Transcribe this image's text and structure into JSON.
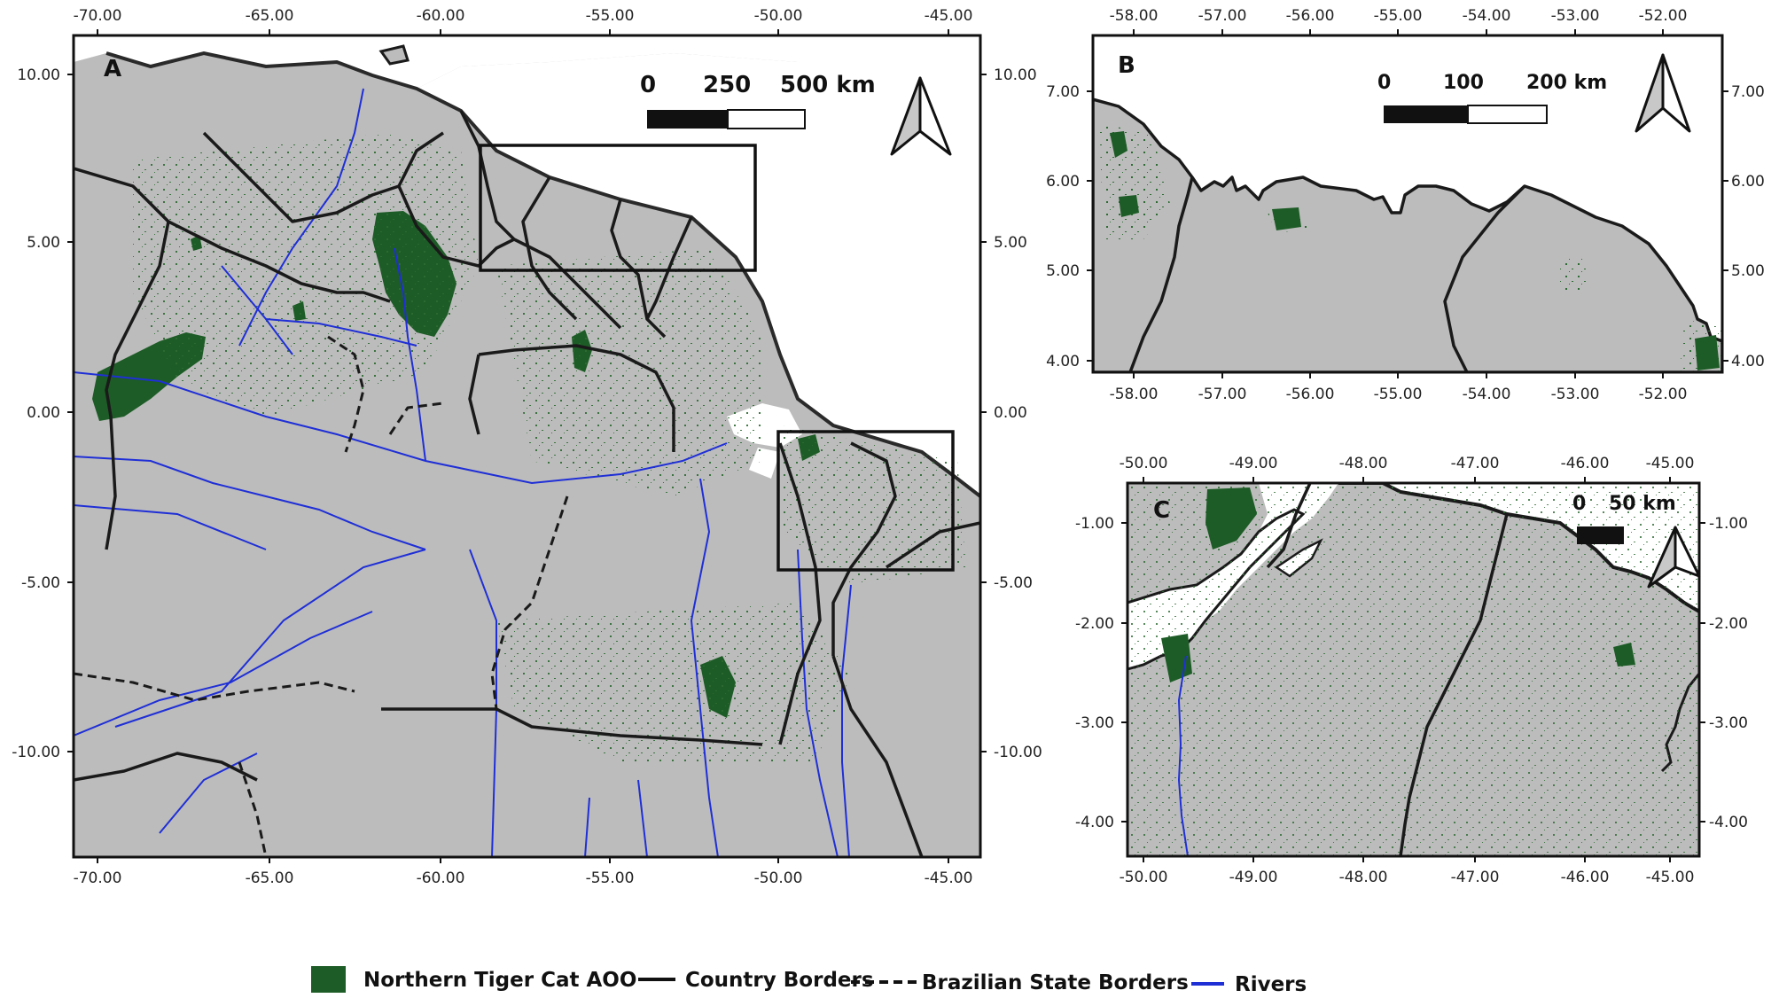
{
  "colors": {
    "land": "#bcbcbc",
    "ocean": "#ffffff",
    "aoo": "#1d5c26",
    "country_border": "#1a1a1a",
    "state_border": "#1a1a1a",
    "river": "#1f2fd6"
  },
  "legend": {
    "items": [
      {
        "label": "Northern Tiger Cat AOO",
        "symbol": "fill-swatch"
      },
      {
        "label": "Country Borders",
        "symbol": "solid-line"
      },
      {
        "label": "Brazilian State Borders",
        "symbol": "dashed-line"
      },
      {
        "label": "Rivers",
        "symbol": "blue-line"
      }
    ]
  },
  "panels": {
    "A": {
      "letter": "A",
      "lon_ticks": [
        "-70.00",
        "-65.00",
        "-60.00",
        "-55.00",
        "-50.00",
        "-45.00"
      ],
      "lat_ticks": [
        "10.00",
        "5.00",
        "0.00",
        "-5.00",
        "-10.00"
      ],
      "scale_labels": [
        "0",
        "250",
        "500 km"
      ],
      "north_arrow": "north-arrow-icon"
    },
    "B": {
      "letter": "B",
      "lon_ticks": [
        "-58.00",
        "-57.00",
        "-56.00",
        "-55.00",
        "-54.00",
        "-53.00",
        "-52.00"
      ],
      "lat_ticks": [
        "7.00",
        "6.00",
        "5.00",
        "4.00"
      ],
      "scale_labels": [
        "0",
        "100",
        "200 km"
      ],
      "north_arrow": "north-arrow-icon"
    },
    "C": {
      "letter": "C",
      "lon_ticks": [
        "-50.00",
        "-49.00",
        "-48.00",
        "-47.00",
        "-46.00",
        "-45.00"
      ],
      "lat_ticks": [
        "-1.00",
        "-2.00",
        "-3.00",
        "-4.00"
      ],
      "scale_labels": [
        "0",
        "50 km"
      ],
      "north_arrow": "north-arrow-icon"
    }
  }
}
